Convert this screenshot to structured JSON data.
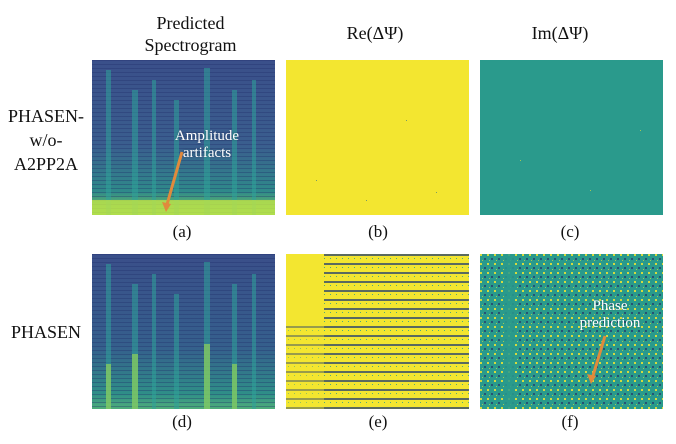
{
  "column_headers": [
    "Predicted Spectrogram",
    "Re(ΔΨ)",
    "Im(ΔΨ)"
  ],
  "row_labels": [
    "PHASEN-w/o-A2PP2A",
    "PHASEN"
  ],
  "captions": [
    "(a)",
    "(b)",
    "(c)",
    "(d)",
    "(e)",
    "(f)"
  ],
  "annotations": {
    "amplitude": "Amplitude artifacts",
    "phase": "Phase prediction"
  },
  "colors": {
    "yellow": "#f3e630",
    "teal": "#2a9a8c",
    "dark_blue": "#2c3f7a",
    "arrow": "#e08a3c"
  }
}
